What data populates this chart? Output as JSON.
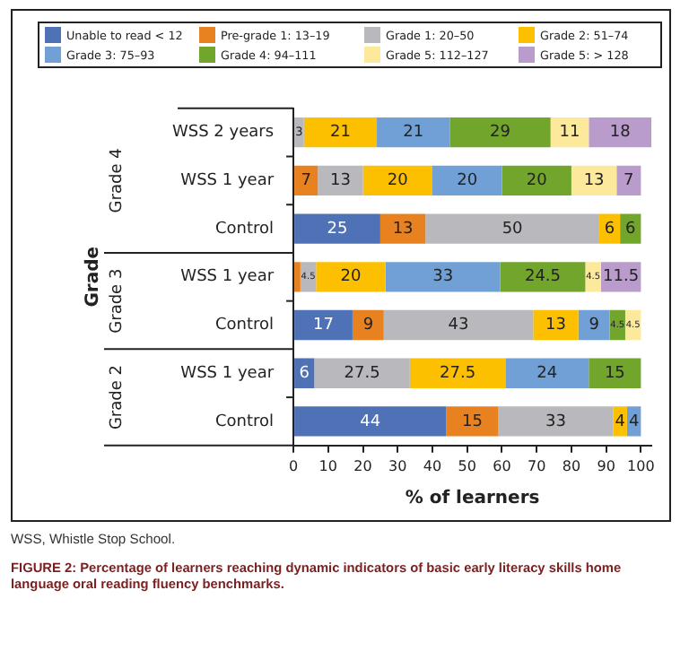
{
  "chart_data": {
    "type": "bar",
    "orientation": "horizontal",
    "stacked": true,
    "ylabel": "Grade",
    "xlabel": "% of learners",
    "categories": [
      "WSS 2 years",
      "WSS 1 year",
      "Control",
      "WSS 1 year",
      "Control",
      "WSS 1 year",
      "Control"
    ],
    "series": [
      {
        "name": "Unable to read < 12",
        "color": "#4f71b5",
        "values": [
          null,
          null,
          25,
          null,
          17,
          6,
          44
        ],
        "value_labels": [
          null,
          null,
          "25",
          null,
          "17",
          "6",
          "44"
        ]
      },
      {
        "name": "Pre-grade 1: 13–19",
        "color": "#e8811f",
        "values": [
          null,
          7,
          13,
          2,
          9,
          null,
          15
        ],
        "value_labels": [
          null,
          "7",
          "13",
          null,
          "9",
          null,
          "15"
        ]
      },
      {
        "name": "Grade 1: 20–50",
        "color": "#b8b8bd",
        "values": [
          3,
          13,
          50,
          4.5,
          43,
          27.5,
          33
        ],
        "value_labels": [
          "3",
          "13",
          "50",
          "4.5",
          "43",
          "27.5",
          "33"
        ]
      },
      {
        "name": "Grade 2: 51–74",
        "color": "#fcc000",
        "values": [
          21,
          20,
          6,
          20,
          13,
          27.5,
          4
        ],
        "value_labels": [
          "21",
          "20",
          "6",
          "20",
          "13",
          "27.5",
          "4"
        ]
      },
      {
        "name": "Grade 3: 75–93",
        "color": "#70a0d5",
        "values": [
          21,
          20,
          null,
          33,
          9,
          24,
          4
        ],
        "value_labels": [
          "21",
          "20",
          null,
          "33",
          "9",
          "24",
          "4"
        ]
      },
      {
        "name": "Grade 4: 94–111",
        "color": "#72a52b",
        "values": [
          29,
          20,
          6,
          24.5,
          4.5,
          15,
          null
        ],
        "value_labels": [
          "29",
          "20",
          "6",
          "24.5",
          "4.5",
          "15",
          null
        ]
      },
      {
        "name": "Grade 5: 112–127",
        "color": "#fde99b",
        "values": [
          11,
          13,
          null,
          4.5,
          4.5,
          null,
          null
        ],
        "value_labels": [
          "11",
          "13",
          null,
          "4.5",
          "4.5",
          null,
          null
        ]
      },
      {
        "name": "Grade 5: > 128",
        "color": "#b99ccb",
        "values": [
          18,
          7,
          null,
          11.5,
          null,
          null,
          null
        ],
        "value_labels": [
          "18",
          "7",
          null,
          "11.5",
          null,
          null,
          null
        ]
      }
    ],
    "xlim": [
      0,
      103
    ],
    "xticks": [
      0,
      10,
      20,
      30,
      40,
      50,
      60,
      70,
      80,
      90,
      100
    ],
    "grid": false,
    "legend": "top",
    "annotations": [
      "Grade 4",
      "Grade 3",
      "Grade 2",
      "WSS, Whistle Stop School.",
      "FIGURE 2: Percentage of learners reaching dynamic indicators of basic early literacy skills home language oral reading fluency benchmarks."
    ]
  }
}
